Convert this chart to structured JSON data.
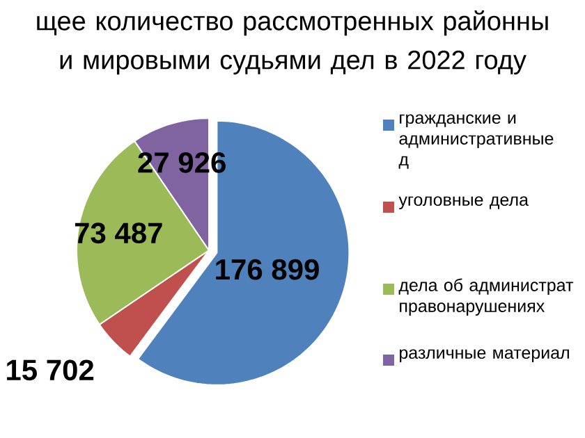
{
  "chart_data": {
    "type": "pie",
    "title": "щее количество рассмотренных районны и мировыми судьями дел в 2022 году",
    "categories": [
      "гражданские и административные д",
      "уголовные дела",
      "дела об администрат правонарушениях",
      "различные материал"
    ],
    "values": [
      176899,
      15702,
      73487,
      27926
    ],
    "value_labels": [
      "176 899",
      "15 702",
      "73 487",
      "27 926"
    ],
    "colors": [
      "#4f81bd",
      "#c0504d",
      "#9bbb59",
      "#8064a2"
    ],
    "legend": "right"
  }
}
